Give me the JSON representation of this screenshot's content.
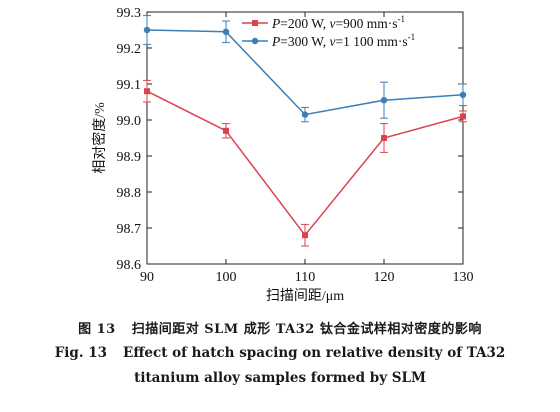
{
  "chart_data": {
    "type": "line",
    "x": [
      90,
      100,
      110,
      120,
      130
    ],
    "xlabel": "扫描间距/μm",
    "ylabel": "相对密度/%",
    "xlim": [
      90,
      130
    ],
    "ylim": [
      98.6,
      99.3
    ],
    "xticks": [
      "90",
      "100",
      "110",
      "120",
      "130"
    ],
    "yticks": [
      "98.6",
      "98.7",
      "98.8",
      "98.9",
      "99.0",
      "99.1",
      "99.2",
      "99.3"
    ],
    "grid": false,
    "legend_position": "top-right",
    "series": [
      {
        "name": "P=200 W, v=900 mm·s⁻¹",
        "name_parts": [
          "P",
          "=200 W, ",
          "v",
          "=900 mm·s",
          "-1"
        ],
        "color": "#d9434e",
        "marker": "square",
        "values": [
          99.08,
          98.97,
          98.68,
          98.95,
          99.01
        ],
        "errors": [
          0.03,
          0.02,
          0.03,
          0.04,
          0.015
        ]
      },
      {
        "name": "P=300 W, v=1 100 mm·s⁻¹",
        "name_parts": [
          "P",
          "=300 W, ",
          "v",
          "=1 100 mm·s",
          "-1"
        ],
        "color": "#3c7eb8",
        "marker": "circle",
        "values": [
          99.25,
          99.245,
          99.015,
          99.055,
          99.07
        ],
        "errors": [
          0.04,
          0.03,
          0.02,
          0.05,
          0.03
        ]
      }
    ]
  },
  "caption": {
    "zh_number": "图 13",
    "zh_text": "扫描间距对 SLM 成形 TA32 钛合金试样相对密度的影响",
    "en_number": "Fig. 13",
    "en_line1": "Effect of hatch spacing on relative density of TA32",
    "en_line2": "titanium alloy samples formed by SLM"
  }
}
